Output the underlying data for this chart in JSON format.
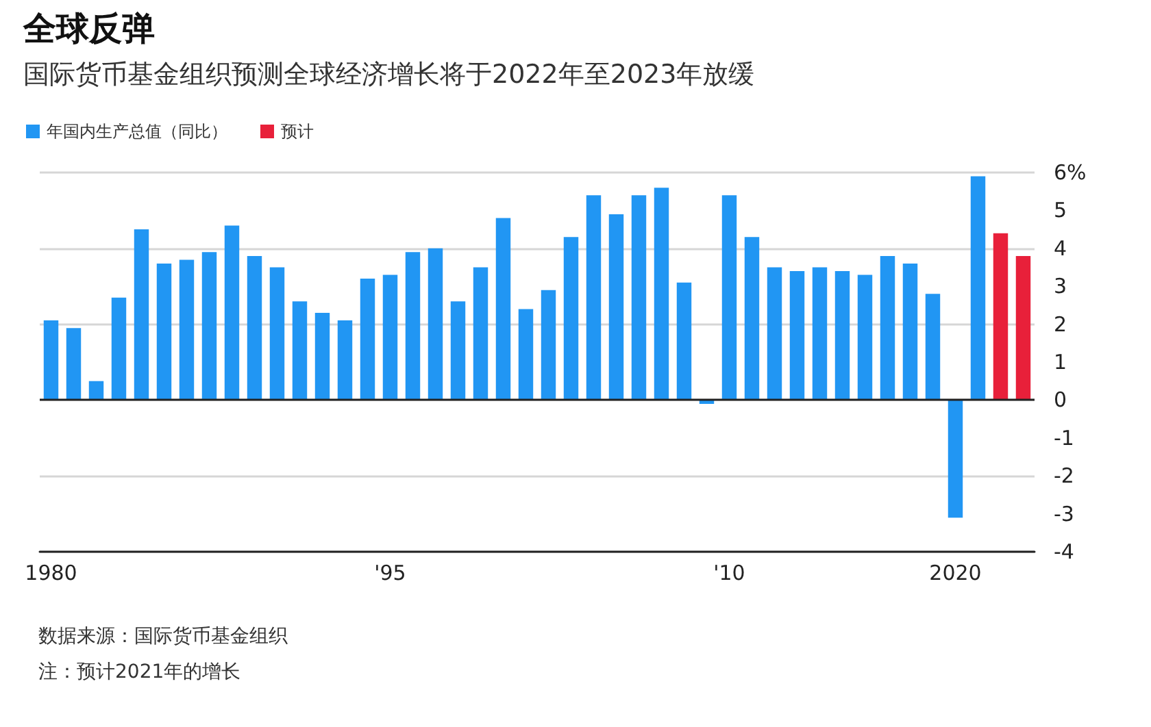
{
  "chart_data": {
    "type": "bar",
    "title": "全球反弹",
    "subtitle": "国际货币基金组织预测全球经济增长将于2022年至2023年放缓",
    "categories": [
      "1980",
      null,
      null,
      null,
      null,
      null,
      null,
      null,
      null,
      null,
      null,
      null,
      null,
      null,
      null,
      "'95",
      null,
      null,
      null,
      null,
      null,
      null,
      null,
      null,
      null,
      null,
      null,
      null,
      null,
      null,
      "'10",
      null,
      null,
      null,
      null,
      null,
      null,
      null,
      null,
      null,
      "2020",
      null,
      null,
      null
    ],
    "series": [
      {
        "name": "年国内生产总值（同比）",
        "color": "#2196f3",
        "values": [
          2.1,
          1.9,
          0.5,
          2.7,
          4.5,
          3.6,
          3.7,
          3.9,
          4.6,
          3.8,
          3.5,
          2.6,
          2.3,
          2.1,
          3.2,
          3.3,
          3.9,
          4.0,
          2.6,
          3.5,
          4.8,
          2.4,
          2.9,
          4.3,
          5.4,
          4.9,
          5.4,
          5.6,
          3.1,
          -0.1,
          5.4,
          4.3,
          3.5,
          3.4,
          3.5,
          3.4,
          3.3,
          3.8,
          3.6,
          2.8,
          -3.1,
          5.9,
          null,
          null
        ]
      },
      {
        "name": "预计",
        "color": "#e8203a",
        "values": [
          null,
          null,
          null,
          null,
          null,
          null,
          null,
          null,
          null,
          null,
          null,
          null,
          null,
          null,
          null,
          null,
          null,
          null,
          null,
          null,
          null,
          null,
          null,
          null,
          null,
          null,
          null,
          null,
          null,
          null,
          null,
          null,
          null,
          null,
          null,
          null,
          null,
          null,
          null,
          null,
          null,
          null,
          4.4,
          3.8
        ]
      }
    ],
    "ylim": [
      -4,
      6
    ],
    "yticks": [
      -4,
      -3,
      -2,
      -1,
      0,
      1,
      2,
      3,
      4,
      5,
      {
        "value": 6,
        "label": "6%"
      }
    ],
    "grid": "y",
    "legend": "top left",
    "ref_lines": [
      {
        "axis": "y",
        "value": 0,
        "color": "#222222"
      }
    ],
    "annotations": [
      "数据来源：国际货币基金组织",
      "注：预计2021年的增长"
    ]
  }
}
